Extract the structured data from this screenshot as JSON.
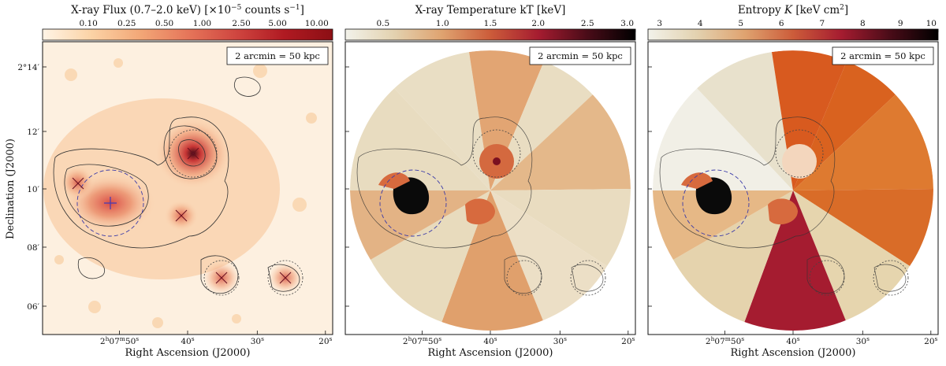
{
  "ylabel": "Declination (J2000)",
  "xlabel": "Right Ascension (J2000)",
  "y_ticks": [
    {
      "deg": "2°14",
      "prime": "′"
    },
    {
      "deg": "12",
      "prime": "′"
    },
    {
      "deg": "10",
      "prime": "′"
    },
    {
      "deg": "08",
      "prime": "′"
    },
    {
      "deg": "06",
      "prime": "′"
    }
  ],
  "x_ticks": [
    {
      "main": "2",
      "sup1": "h",
      "mid": "07",
      "sup2": "m",
      "tail": "50",
      "sup3": "s"
    },
    {
      "main": "40",
      "sup1": "s"
    },
    {
      "main": "30",
      "sup1": "s"
    },
    {
      "main": "20",
      "sup1": "s"
    }
  ],
  "scalebar_label": "2 arcmin = 50 kpc",
  "panels": [
    {
      "colorbar": {
        "title_a": "X-ray Flux (0.7–2.0 keV) [×10",
        "title_exp": "−5",
        "title_b": " counts s",
        "title_exp2": "−1",
        "title_c": "]",
        "ticks": [
          "0.10",
          "0.25",
          "0.50",
          "1.00",
          "2.50",
          "5.00",
          "10.00"
        ],
        "colors": [
          "#fff4e6",
          "#fbd3a6",
          "#f3a878",
          "#e6765a",
          "#cf4640",
          "#b01a22",
          "#8c0f14"
        ]
      }
    },
    {
      "colorbar": {
        "title_a": "X-ray Temperature kT [keV]",
        "ticks": [
          "0.5",
          "1.0",
          "1.5",
          "2.0",
          "2.5",
          "3.0"
        ],
        "colors": [
          "#f2f2ea",
          "#e3d2b0",
          "#dfa370",
          "#cc5c3a",
          "#a51c30",
          "#4a0c18",
          "#000000"
        ]
      }
    },
    {
      "colorbar": {
        "title_a": "Entropy ",
        "title_italic": "K",
        "title_b": " [keV cm",
        "title_exp": "2",
        "title_c": "]",
        "ticks": [
          "3",
          "4",
          "5",
          "6",
          "7",
          "8",
          "9",
          "10"
        ],
        "colors": [
          "#f2f2ea",
          "#e3d2b0",
          "#dfa370",
          "#cc5c3a",
          "#a51c30",
          "#4a0c18",
          "#000000"
        ]
      }
    }
  ]
}
